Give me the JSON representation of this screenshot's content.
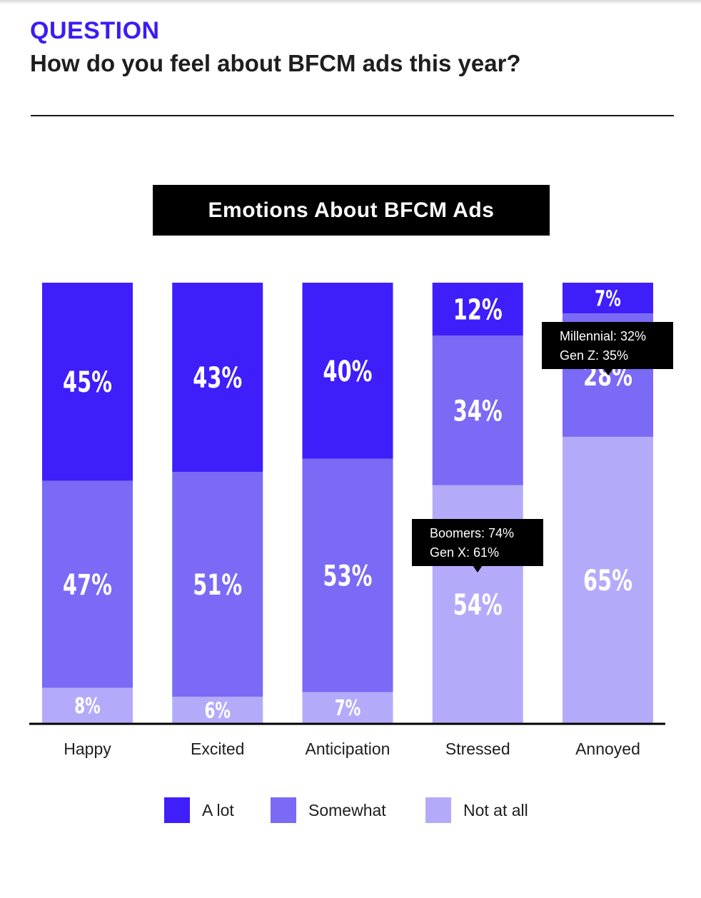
{
  "header": {
    "eyebrow": "QUESTION",
    "question": "How do you feel about BFCM ads this year?"
  },
  "colors": {
    "a_lot": "#3e1ffa",
    "somewhat": "#7a6af5",
    "not_at_all": "#b3abfa",
    "text": "#1e1e1e",
    "accent": "#3b1cf5"
  },
  "chart_data": {
    "type": "bar",
    "stacked": true,
    "title": "Emotions About BFCM Ads",
    "categories": [
      "Happy",
      "Excited",
      "Anticipation",
      "Stressed",
      "Annoyed"
    ],
    "series": [
      {
        "name": "A lot",
        "values": [
          45,
          43,
          40,
          12,
          7
        ],
        "labels": [
          "45%",
          "43%",
          "40%",
          "12%",
          "7%"
        ]
      },
      {
        "name": "Somewhat",
        "values": [
          47,
          51,
          53,
          34,
          28
        ],
        "labels": [
          "47%",
          "51%",
          "53%",
          "34%",
          "28%"
        ]
      },
      {
        "name": "Not at all",
        "values": [
          8,
          6,
          7,
          54,
          65
        ],
        "labels": [
          "8%",
          "6%",
          "7%",
          "54%",
          "65%"
        ]
      }
    ],
    "stack_order": "top-to-bottom",
    "ylim": [
      0,
      100
    ],
    "legend_position": "bottom-center",
    "grid": false,
    "annotations": [
      {
        "category": "Stressed",
        "lines": [
          "Boomers: 74%",
          "Gen X: 61%"
        ]
      },
      {
        "category": "Annoyed",
        "lines": [
          "Millennial: 32%",
          "Gen Z: 35%"
        ]
      }
    ]
  },
  "legend": [
    {
      "label": "A lot",
      "color": "#3e1ffa"
    },
    {
      "label": "Somewhat",
      "color": "#7a6af5"
    },
    {
      "label": "Not at all",
      "color": "#b3abfa"
    }
  ]
}
